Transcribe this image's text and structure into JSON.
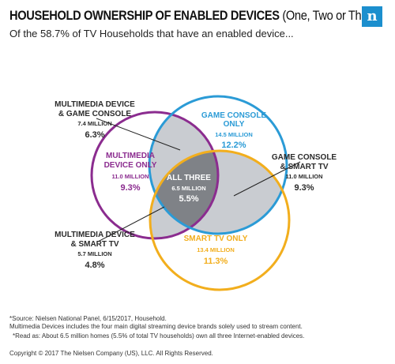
{
  "header": {
    "title": "HOUSEHOLD OWNERSHIP OF ENABLED DEVICES",
    "title_suffix": "(One, Two or Three)",
    "subtitle": "Of the 58.7% of TV Households that have an enabled device...",
    "brand_mark": "n"
  },
  "colors": {
    "multimedia": "#8b2c8f",
    "game": "#2b9bd6",
    "smart_tv": "#f2ae1d",
    "overlap_light": "#c9ccd1",
    "overlap_dark": "#7f8287",
    "text_dark": "#2b2b2b"
  },
  "circles": {
    "multimedia": {
      "name_line1": "MULTIMEDIA",
      "name_line2": "DEVICE ONLY",
      "millions": "11.0 MILLION",
      "percent": "9.3%"
    },
    "game": {
      "name_line1": "GAME CONSOLE",
      "name_line2": "ONLY",
      "millions": "14.5 MILLION",
      "percent": "12.2%"
    },
    "smart_tv": {
      "name_line1": "SMART TV ONLY",
      "millions": "13.4 MILLION",
      "percent": "11.3%"
    },
    "all_three": {
      "name": "ALL THREE",
      "millions": "6.5 MILLION",
      "percent": "5.5%"
    }
  },
  "callouts": {
    "multimedia_game": {
      "line1": "MULTIMEDIA DEVICE",
      "line2": "& GAME CONSOLE",
      "millions": "7.4 MILLION",
      "percent": "6.3%"
    },
    "game_smart_tv": {
      "line1": "GAME CONSOLE",
      "line2": "& SMART TV",
      "millions": "11.0 MILLION",
      "percent": "9.3%"
    },
    "multimedia_smart_tv": {
      "line1": "MULTIMEDIA DEVICE",
      "line2": "& SMART TV",
      "millions": "5.7 MILLION",
      "percent": "4.8%"
    }
  },
  "footer": {
    "source": "*Source: Nielsen National Panel, 6/15/2017, Household.",
    "note": "Multimedia Devices includes the four main digital streaming device brands solely used to stream content.",
    "read_as": "*Read as: About 6.5 million homes (5.5% of total TV households) own all three Internet-enabled devices.",
    "copyright": "Copyright © 2017 The Nielsen Company (US), LLC. All Rights Reserved."
  }
}
